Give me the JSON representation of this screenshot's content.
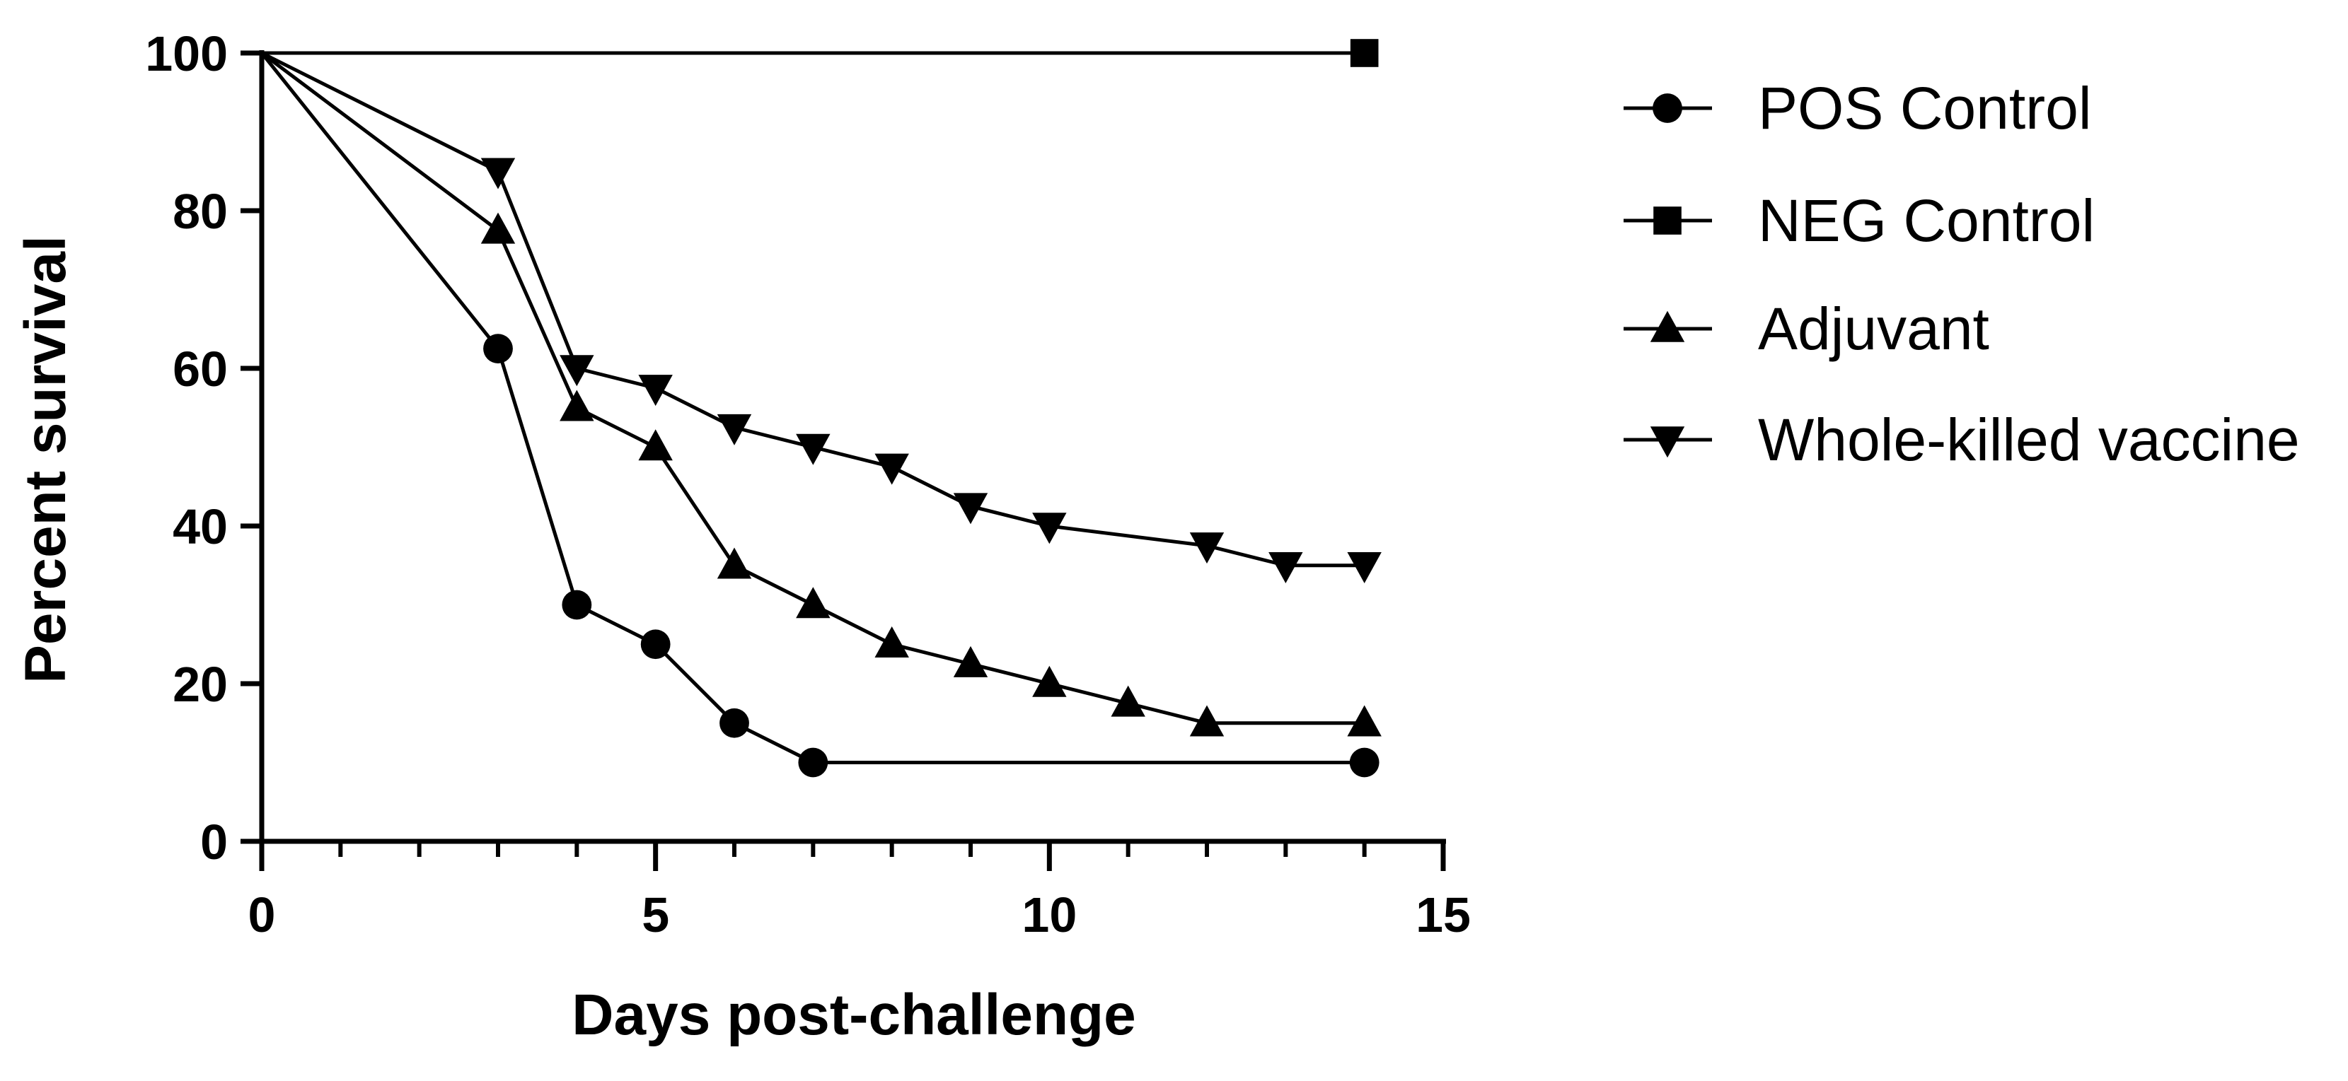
{
  "chart_data": {
    "type": "line",
    "title": "",
    "xlabel": "Days post-challenge",
    "ylabel": "Percent survival",
    "xlim": [
      0,
      15
    ],
    "ylim": [
      0,
      100
    ],
    "xticks": [
      0,
      5,
      10,
      15
    ],
    "xminor_ticks": [
      1,
      2,
      3,
      4,
      6,
      7,
      8,
      9,
      11,
      12,
      13,
      14
    ],
    "yticks": [
      0,
      20,
      40,
      60,
      80,
      100
    ],
    "grid": false,
    "legend_position": "right",
    "series": [
      {
        "name": "POS Control",
        "marker": "circle",
        "x": [
          0,
          3,
          4,
          5,
          6,
          7,
          14
        ],
        "y": [
          100,
          62.5,
          30,
          25,
          15,
          10,
          10
        ],
        "markers_at": [
          3,
          4,
          5,
          6,
          7,
          14
        ]
      },
      {
        "name": "NEG Control",
        "marker": "square",
        "x": [
          0,
          14
        ],
        "y": [
          100,
          100
        ],
        "markers_at": [
          14
        ]
      },
      {
        "name": "Adjuvant",
        "marker": "triangle-up",
        "x": [
          0,
          3,
          4,
          5,
          6,
          7,
          8,
          9,
          10,
          11,
          12,
          14
        ],
        "y": [
          100,
          77.5,
          55,
          50,
          35,
          30,
          25,
          22.5,
          20,
          17.5,
          15,
          15
        ],
        "markers_at": [
          3,
          4,
          5,
          6,
          7,
          8,
          9,
          10,
          11,
          12,
          14
        ]
      },
      {
        "name": "Whole-killed vaccine",
        "marker": "triangle-down",
        "x": [
          0,
          3,
          4,
          5,
          6,
          7,
          8,
          9,
          10,
          12,
          13,
          14
        ],
        "y": [
          100,
          85,
          60,
          57.5,
          52.5,
          50,
          47.5,
          42.5,
          40,
          37.5,
          35,
          35
        ],
        "markers_at": [
          3,
          4,
          5,
          6,
          7,
          8,
          9,
          10,
          12,
          13,
          14
        ]
      }
    ]
  }
}
